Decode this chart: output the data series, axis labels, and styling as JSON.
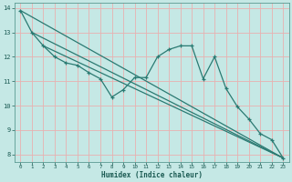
{
  "title": "",
  "xlabel": "Humidex (Indice chaleur)",
  "ylabel": "",
  "background_color": "#c5e8e5",
  "grid_color": "#e8b0b0",
  "line_color": "#2a7a72",
  "xlim": [
    -0.5,
    23.5
  ],
  "ylim": [
    7.7,
    14.2
  ],
  "yticks": [
    8,
    9,
    10,
    11,
    12,
    13,
    14
  ],
  "xticks": [
    0,
    1,
    2,
    3,
    4,
    5,
    6,
    7,
    8,
    9,
    10,
    11,
    12,
    13,
    14,
    15,
    16,
    17,
    18,
    19,
    20,
    21,
    22,
    23
  ],
  "zigzag_x": [
    0,
    1,
    2,
    3,
    4,
    5,
    6,
    7,
    8,
    9,
    10,
    11,
    12,
    13,
    14,
    15,
    16,
    17,
    18,
    19,
    20,
    21,
    22,
    23
  ],
  "zigzag_y": [
    13.9,
    13.0,
    12.45,
    12.0,
    11.75,
    11.65,
    11.35,
    11.1,
    10.35,
    10.65,
    11.15,
    11.15,
    12.0,
    12.3,
    12.45,
    12.45,
    11.1,
    12.0,
    10.7,
    9.95,
    9.45,
    8.85,
    8.6,
    7.85
  ],
  "line1_x": [
    0,
    23
  ],
  "line1_y": [
    13.9,
    7.85
  ],
  "line2_x": [
    1,
    23
  ],
  "line2_y": [
    13.0,
    7.85
  ],
  "line3_x": [
    2,
    23
  ],
  "line3_y": [
    12.45,
    7.85
  ]
}
